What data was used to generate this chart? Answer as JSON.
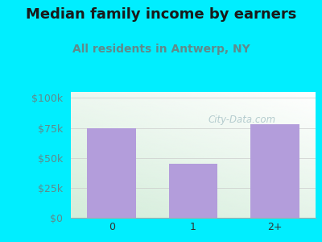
{
  "title": "Median family income by earners",
  "subtitle": "All residents in Antwerp, NY",
  "categories": [
    "0",
    "1",
    "2+"
  ],
  "values": [
    75000,
    45000,
    78000
  ],
  "bar_color": "#b39ddb",
  "background_color": "#00eeff",
  "plot_bg_color_topleft": "#d4edda",
  "plot_bg_color_bottomright": "#ffffff",
  "title_color": "#1a1a1a",
  "subtitle_color": "#5f8a8b",
  "ytick_color": "#5f8a8b",
  "xtick_color": "#333333",
  "yticks": [
    0,
    25000,
    50000,
    75000,
    100000
  ],
  "ytick_labels": [
    "$0",
    "$25k",
    "$50k",
    "$75k",
    "$100k"
  ],
  "ylim": [
    0,
    105000
  ],
  "watermark": "City-Data.com",
  "watermark_color": "#aac4c8",
  "title_fontsize": 13,
  "subtitle_fontsize": 10,
  "tick_fontsize": 9
}
